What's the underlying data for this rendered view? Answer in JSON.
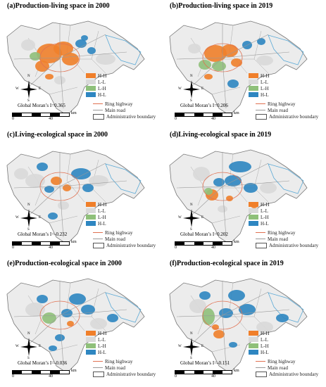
{
  "panels": [
    {
      "title": "(a)Production-living space in 2000",
      "moran": "Global Moran’s I=0.365"
    },
    {
      "title": "(b)Production-living space in 2019",
      "moran": "Global Moran’s I=0.206"
    },
    {
      "title": "(c)Living-ecological space in 2000",
      "moran": "Global Moran’s I=-0.232"
    },
    {
      "title": "(d)Living-ecological space in 2019",
      "moran": "Global Moran’s I=0.202"
    },
    {
      "title": "(e)Production-ecological space in 2000",
      "moran": "Global Moran’s I=-0.036"
    },
    {
      "title": "(f)Production-ecological space in 2019",
      "moran": "Global Moran’s I=-0.151"
    }
  ],
  "legend": {
    "classes": [
      {
        "label": "H-H",
        "color": "#f07f2a"
      },
      {
        "label": "L-L",
        "color": "#d9d9d9"
      },
      {
        "label": "L-H",
        "color": "#8fc07a"
      },
      {
        "label": "H-L",
        "color": "#2e86c1"
      }
    ],
    "lines": [
      {
        "label": "Ring highway",
        "color": "#e07050"
      },
      {
        "label": "Main road",
        "color": "#999999"
      }
    ],
    "boundary_label": "Administrative boundary"
  },
  "scale": {
    "zero": "0",
    "forty": "40",
    "unit": "km"
  },
  "compass": {
    "n": "N",
    "s": "S",
    "e": "E",
    "w": "W"
  }
}
